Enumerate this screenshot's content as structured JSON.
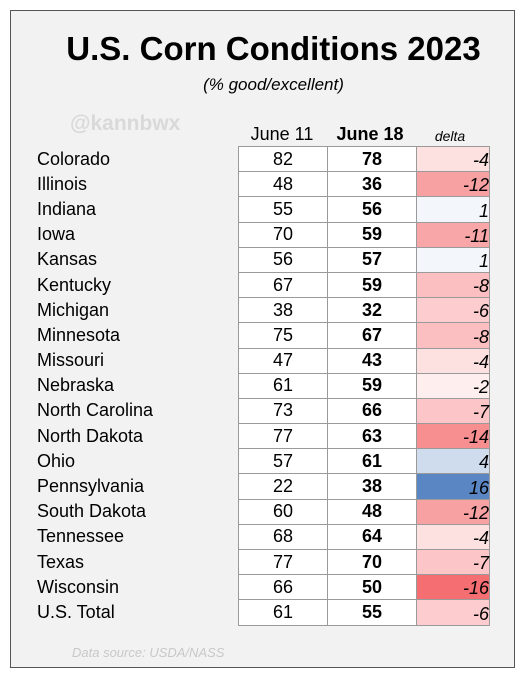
{
  "chart_data": {
    "type": "table",
    "title": "U.S. Corn Conditions 2023",
    "subtitle": "(% good/excellent)",
    "watermark": "@kannbwx",
    "source": "Data source: USDA/NASS",
    "columns": [
      "June 11",
      "June 18",
      "delta"
    ],
    "rows": [
      {
        "state": "Colorado",
        "june11": 82,
        "june18": 78,
        "delta": -4,
        "color": "#fde0e0"
      },
      {
        "state": "Illinois",
        "june11": 48,
        "june18": 36,
        "delta": -12,
        "color": "#f8a1a3"
      },
      {
        "state": "Indiana",
        "june11": 55,
        "june18": 56,
        "delta": 1,
        "color": "#f3f6fa"
      },
      {
        "state": "Iowa",
        "june11": 70,
        "june18": 59,
        "delta": -11,
        "color": "#f9a6a8"
      },
      {
        "state": "Kansas",
        "june11": 56,
        "june18": 57,
        "delta": 1,
        "color": "#f3f6fa"
      },
      {
        "state": "Kentucky",
        "june11": 67,
        "june18": 59,
        "delta": -8,
        "color": "#fbbfc1"
      },
      {
        "state": "Michigan",
        "june11": 38,
        "june18": 32,
        "delta": -6,
        "color": "#fcccce"
      },
      {
        "state": "Minnesota",
        "june11": 75,
        "june18": 67,
        "delta": -8,
        "color": "#fbbfc1"
      },
      {
        "state": "Missouri",
        "june11": 47,
        "june18": 43,
        "delta": -4,
        "color": "#fde0e0"
      },
      {
        "state": "Nebraska",
        "june11": 61,
        "june18": 59,
        "delta": -2,
        "color": "#feeeee"
      },
      {
        "state": "North Carolina",
        "june11": 73,
        "june18": 66,
        "delta": -7,
        "color": "#fcc5c7"
      },
      {
        "state": "North Dakota",
        "june11": 77,
        "june18": 63,
        "delta": -14,
        "color": "#f78f91"
      },
      {
        "state": "Ohio",
        "june11": 57,
        "june18": 61,
        "delta": 4,
        "color": "#cfdcee"
      },
      {
        "state": "Pennsylvania",
        "june11": 22,
        "june18": 38,
        "delta": 16,
        "color": "#5b86c4"
      },
      {
        "state": "South Dakota",
        "june11": 60,
        "june18": 48,
        "delta": -12,
        "color": "#f8a1a3"
      },
      {
        "state": "Tennessee",
        "june11": 68,
        "june18": 64,
        "delta": -4,
        "color": "#fde0e0"
      },
      {
        "state": "Texas",
        "june11": 77,
        "june18": 70,
        "delta": -7,
        "color": "#fcc5c7"
      },
      {
        "state": "Wisconsin",
        "june11": 66,
        "june18": 50,
        "delta": -16,
        "color": "#f56f72"
      },
      {
        "state": "U.S. Total",
        "june11": 61,
        "june18": 55,
        "delta": -6,
        "color": "#fcccce"
      }
    ]
  }
}
